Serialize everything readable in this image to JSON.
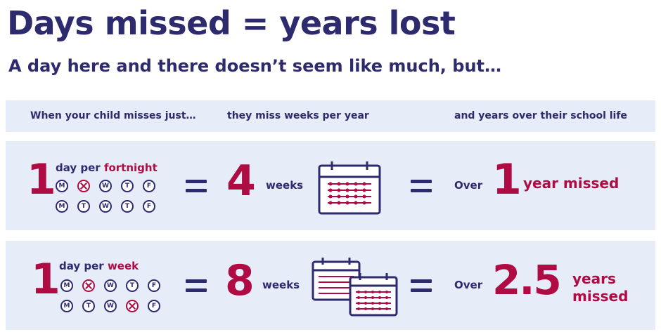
{
  "title": "Days missed = years lost",
  "subtitle": "A day here and there doesn’t seem like much, but…",
  "headers": {
    "col1": "When your child misses just…",
    "col2": "they miss weeks per year",
    "col3": "and years over their school life"
  },
  "day_letters": [
    "M",
    "T",
    "W",
    "T",
    "F"
  ],
  "rows": [
    {
      "count": "1",
      "label_prefix": "day per ",
      "label_period": "fortnight",
      "week1_missed": [
        false,
        true,
        false,
        false,
        false
      ],
      "week2_missed": [
        false,
        false,
        false,
        false,
        false
      ],
      "weeks_value": "4",
      "weeks_label": "weeks",
      "over_label": "Over",
      "years_value": "1",
      "years_label": "year missed",
      "calendar_icon": "calendar-icon"
    },
    {
      "count": "1",
      "label_prefix": "day per ",
      "label_period": "week",
      "week1_missed": [
        false,
        true,
        false,
        false,
        false
      ],
      "week2_missed": [
        false,
        false,
        false,
        true,
        false
      ],
      "weeks_value": "8",
      "weeks_label": "weeks",
      "over_label": "Over",
      "years_value": "2.5",
      "years_label_line1": "years",
      "years_label_line2": "missed",
      "calendar_icon": "two-calendars-icon"
    }
  ],
  "colors": {
    "navy": "#2d2a6e",
    "crimson": "#b00c44",
    "panel": "#e6edf8"
  }
}
